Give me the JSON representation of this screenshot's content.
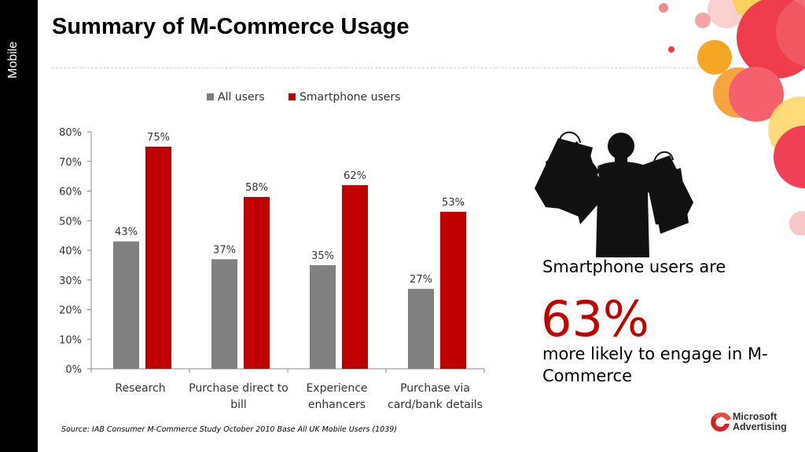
{
  "sidebar": {
    "label": "Mobile"
  },
  "title": "Summary of M-Commerce Usage",
  "chart_data": {
    "type": "bar",
    "categories": [
      [
        "Research"
      ],
      [
        "Purchase direct to",
        "bill"
      ],
      [
        "Experience",
        "enhancers"
      ],
      [
        "Purchase via",
        "card/bank details"
      ]
    ],
    "series": [
      {
        "name": "All users",
        "values": [
          43,
          37,
          35,
          27
        ],
        "color": "#808080"
      },
      {
        "name": "Smartphone users",
        "values": [
          75,
          58,
          62,
          53
        ],
        "color": "#c00000"
      }
    ],
    "ylim": [
      0,
      80
    ],
    "yticks": [
      0,
      10,
      20,
      30,
      40,
      50,
      60,
      70,
      80
    ],
    "value_suffix": "%",
    "legend_position": "top",
    "grid": false
  },
  "callout": {
    "line1": "Smartphone users are",
    "stat": "63%",
    "line2": "more likely to engage in M-Commerce"
  },
  "source": "Source: IAB Consumer M-Commerce Study October 2010  Base All UK Mobile Users (1039)",
  "logo": {
    "line1": "Microsoft",
    "line2": "Advertising",
    "icon": "microsoft-advertising-logo-icon"
  }
}
